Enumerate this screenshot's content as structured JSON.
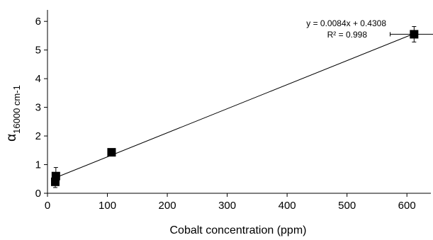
{
  "chart_data": {
    "type": "scatter",
    "xlabel": "Cobalt concentration (ppm)",
    "ylabel": {
      "symbol": "α",
      "subscript": "16000 cm-1"
    },
    "xlim": [
      0,
      640
    ],
    "ylim": [
      0,
      6.4
    ],
    "x_ticks": [
      0,
      100,
      200,
      300,
      400,
      500,
      600
    ],
    "y_ticks": [
      0,
      1,
      2,
      3,
      4,
      5,
      6
    ],
    "grid": false,
    "marker": "square",
    "points": [
      {
        "x": 13,
        "y": 0.4,
        "y_err": 0.2
      },
      {
        "x": 14,
        "y": 0.6,
        "y_err": 0.3
      },
      {
        "x": 107,
        "y": 1.43,
        "y_err": 0.05
      },
      {
        "x": 612,
        "y": 5.55,
        "y_err": 0.27,
        "x_err": 40
      }
    ],
    "fit": {
      "slope": 0.0084,
      "intercept": 0.4308,
      "x_range": [
        13,
        612
      ],
      "equation_text": "y = 0.0084x + 0.4308",
      "r2_text": "R² = 0.998"
    },
    "colors": {
      "marker": "#000000",
      "line": "#000000",
      "axis": "#000000"
    }
  }
}
